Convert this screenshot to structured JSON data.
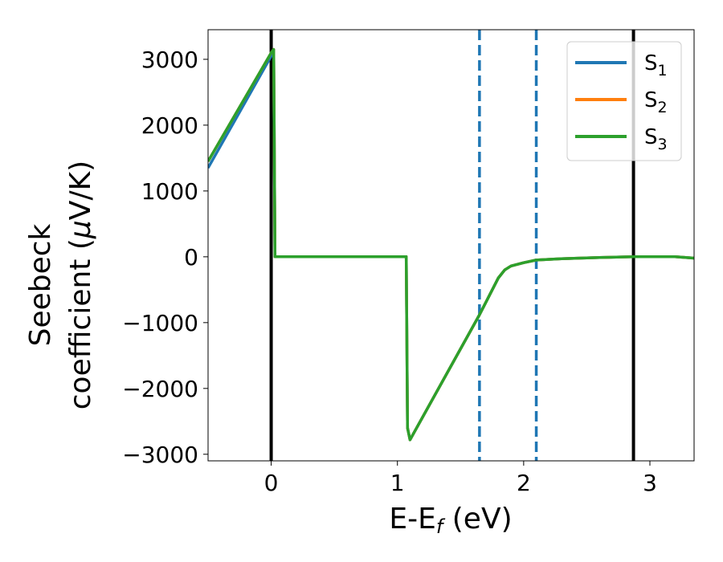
{
  "chart_data": {
    "type": "line",
    "xlabel": "E-E",
    "xlabel_sub": "f",
    "xlabel_unit": " (eV)",
    "ylabel_line1": "Seebeck",
    "ylabel_line2_prefix": "coefficient  (",
    "ylabel_mu": "μ",
    "ylabel_line2_suffix": "V/K)",
    "xlim": [
      -0.5,
      3.35
    ],
    "ylim": [
      -3100,
      3450
    ],
    "xticks": [
      0,
      1,
      2,
      3
    ],
    "yticks": [
      -3000,
      -2000,
      -1000,
      0,
      1000,
      2000,
      3000
    ],
    "xtick_labels": [
      "0",
      "1",
      "2",
      "3"
    ],
    "ytick_labels": [
      "−3000",
      "−2000",
      "−1000",
      "0",
      "1000",
      "2000",
      "3000"
    ],
    "grid": false,
    "legend_position": "top-right",
    "vertical_lines": [
      {
        "x": 0.0,
        "style": "solid",
        "color": "#000000"
      },
      {
        "x": 2.87,
        "style": "solid",
        "color": "#000000"
      },
      {
        "x": 1.65,
        "style": "dashed",
        "color": "#1f77b4"
      },
      {
        "x": 2.1,
        "style": "dashed",
        "color": "#1f77b4"
      }
    ],
    "series": [
      {
        "name": "S",
        "name_sub": "1",
        "color": "#1f77b4",
        "x": [
          -0.5,
          0.0,
          0.02,
          0.03,
          1.07,
          1.08,
          1.1,
          1.65,
          1.8,
          1.85,
          1.9,
          2.0,
          2.1,
          2.3,
          2.6,
          2.87,
          3.0,
          3.2,
          3.35
        ],
        "y": [
          1350,
          3050,
          3100,
          0,
          0,
          -2600,
          -2780,
          -880,
          -320,
          -200,
          -140,
          -90,
          -50,
          -30,
          -10,
          0,
          0,
          0,
          -20
        ]
      },
      {
        "name": "S",
        "name_sub": "2",
        "color": "#ff7f0e",
        "x": [
          -0.5,
          0.0,
          0.02,
          0.03,
          1.07,
          1.08,
          1.1,
          1.65,
          1.8,
          1.85,
          1.9,
          2.0,
          2.1,
          2.3,
          2.6,
          2.87,
          3.0,
          3.2,
          3.35
        ],
        "y": [
          1450,
          3100,
          3150,
          0,
          0,
          -2600,
          -2780,
          -880,
          -320,
          -200,
          -140,
          -90,
          -50,
          -30,
          -10,
          0,
          0,
          0,
          -20
        ]
      },
      {
        "name": "S",
        "name_sub": "3",
        "color": "#2ca02c",
        "x": [
          -0.5,
          0.0,
          0.02,
          0.03,
          1.07,
          1.08,
          1.1,
          1.65,
          1.8,
          1.85,
          1.9,
          2.0,
          2.1,
          2.3,
          2.6,
          2.87,
          3.0,
          3.2,
          3.35
        ],
        "y": [
          1450,
          3100,
          3150,
          0,
          0,
          -2600,
          -2780,
          -880,
          -320,
          -200,
          -140,
          -90,
          -50,
          -30,
          -10,
          0,
          0,
          0,
          -20
        ]
      }
    ]
  }
}
